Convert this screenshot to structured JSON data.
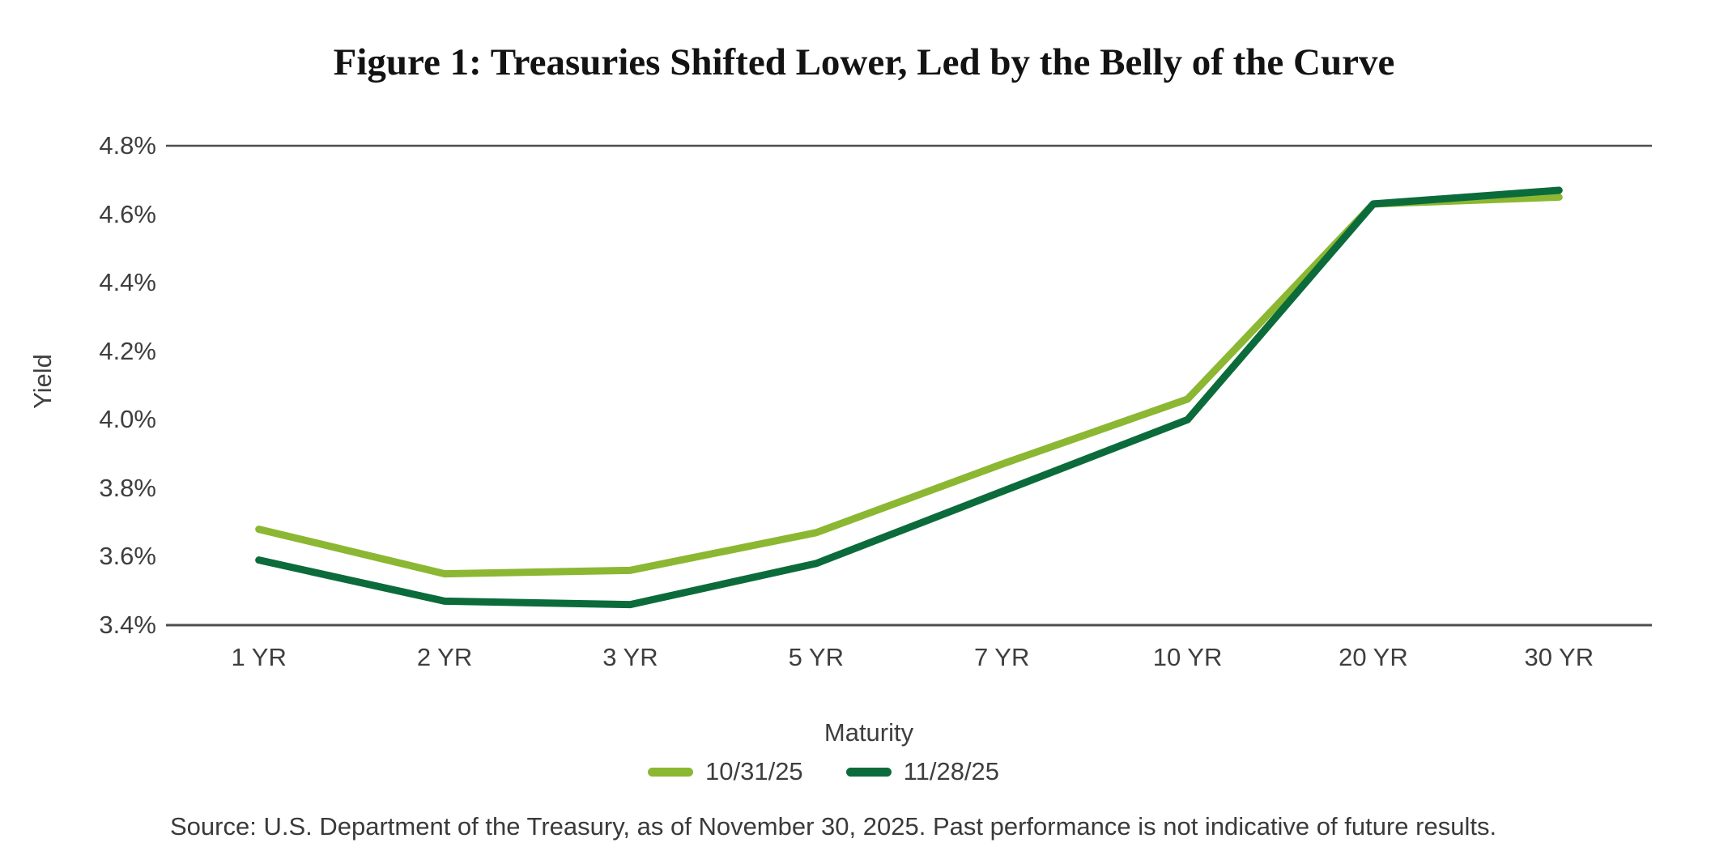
{
  "title": "Figure 1: Treasuries Shifted Lower, Led by the Belly of the Curve",
  "source_note": "Source: U.S. Department of the Treasury, as of November 30, 2025. Past performance is not indicative of future results.",
  "axis": {
    "x_label": "Maturity",
    "y_label": "Yield"
  },
  "colors": {
    "background": "#ffffff",
    "gridline": "#4d4d4d",
    "axis_line": "#4d4d4d",
    "tick_text": "#3e3e3e",
    "title_text": "#131313",
    "series_1": "#8cb732",
    "series_2": "#0c6b3b"
  },
  "chart_data": {
    "type": "line",
    "title": "Figure 1: Treasuries Shifted Lower, Led by the Belly of the Curve",
    "xlabel": "Maturity",
    "ylabel": "Yield",
    "categories": [
      "1 YR",
      "2 YR",
      "3 YR",
      "5 YR",
      "7 YR",
      "10 YR",
      "20 YR",
      "30 YR"
    ],
    "series": [
      {
        "name": "10/31/25",
        "color": "#8cb732",
        "values": [
          3.68,
          3.55,
          3.56,
          3.67,
          3.87,
          4.06,
          4.63,
          4.65
        ]
      },
      {
        "name": "11/28/25",
        "color": "#0c6b3b",
        "values": [
          3.59,
          3.47,
          3.46,
          3.58,
          3.79,
          4.0,
          4.63,
          4.67
        ]
      }
    ],
    "ylim": [
      3.4,
      4.8
    ],
    "ytick_step": 0.2,
    "ytick_labels": [
      "4.8%",
      "4.6%",
      "4.4%",
      "4.2%",
      "4.0%",
      "3.8%",
      "3.6%",
      "3.4%"
    ],
    "grid": "horizontal boundary lines only (top 4.8% gridline and bottom 3.4% axis line)",
    "legend_position": "bottom-center"
  }
}
